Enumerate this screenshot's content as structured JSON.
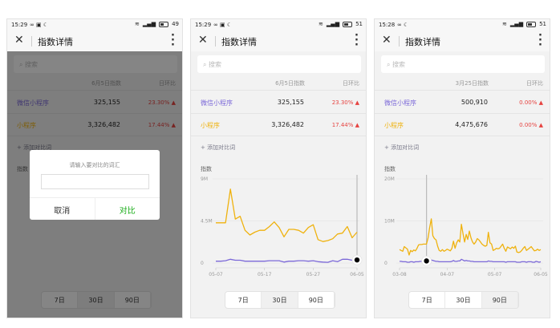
{
  "colors": {
    "series_a": "#7b68d8",
    "series_b": "#efb20e",
    "up": "#e64340",
    "confirm": "#1aad19"
  },
  "panels": [
    {
      "status": {
        "time": "15:29",
        "extra": "∞ ▣ ☾",
        "battery": "49",
        "battery_level": 0.49
      },
      "nav": {
        "close_icon": "close-icon",
        "title": "指数详情",
        "more_icon": "more-vertical-icon"
      },
      "search": {
        "placeholder": "搜索",
        "icon": "search-icon"
      },
      "table": {
        "date_header": "6月5日指数",
        "change_header": "日环比",
        "rows": [
          {
            "name": "微信小程序",
            "value": "325,155",
            "change": "23.30% ▲",
            "series": "a"
          },
          {
            "name": "小程序",
            "value": "3,326,482",
            "change": "17.44% ▲",
            "series": "b"
          }
        ]
      },
      "add_compare": "+ 添加对比词",
      "chart_label": "指数",
      "ranges": [
        {
          "label": "7日",
          "selected": false
        },
        {
          "label": "30日",
          "selected": true
        },
        {
          "label": "90日",
          "selected": false
        }
      ],
      "dialog": {
        "title": "请输入要对比的词汇",
        "input_value": "",
        "cancel": "取消",
        "confirm": "对比"
      },
      "chart_data": null
    },
    {
      "status": {
        "time": "15:29",
        "extra": "∞ ▣ ☾",
        "battery": "51",
        "battery_level": 0.51
      },
      "nav": {
        "close_icon": "close-icon",
        "title": "指数详情",
        "more_icon": "more-vertical-icon"
      },
      "search": {
        "placeholder": "搜索",
        "icon": "search-icon"
      },
      "table": {
        "date_header": "6月5日指数",
        "change_header": "日环比",
        "rows": [
          {
            "name": "微信小程序",
            "value": "325,155",
            "change": "23.30% ▲",
            "series": "a"
          },
          {
            "name": "小程序",
            "value": "3,326,482",
            "change": "17.44% ▲",
            "series": "b"
          }
        ]
      },
      "add_compare": "+ 添加对比词",
      "chart_label": "指数",
      "ranges": [
        {
          "label": "7日",
          "selected": false
        },
        {
          "label": "30日",
          "selected": true
        },
        {
          "label": "90日",
          "selected": false
        }
      ],
      "chart_data": {
        "type": "line",
        "ylim": [
          0,
          9000000
        ],
        "grid": true,
        "yticks": [
          {
            "value": 0,
            "label": "0"
          },
          {
            "value": 4500000,
            "label": "4.5M"
          },
          {
            "value": 9000000,
            "label": "9M"
          }
        ],
        "xcount": 30,
        "xticks": [
          {
            "index": 0,
            "label": "05-07"
          },
          {
            "index": 10,
            "label": "05-17"
          },
          {
            "index": 20,
            "label": "05-27"
          },
          {
            "index": 29,
            "label": "06-05"
          }
        ],
        "marker_index": 29,
        "series": [
          {
            "key": "b",
            "name": "小程序",
            "values": [
              4.3,
              4.3,
              4.3,
              7.9,
              4.7,
              5.0,
              3.5,
              3.0,
              3.3,
              3.5,
              3.5,
              3.9,
              4.4,
              3.8,
              2.8,
              3.6,
              3.6,
              3.5,
              3.2,
              3.8,
              4.1,
              2.5,
              2.3,
              2.4,
              2.6,
              3.1,
              3.2,
              3.9,
              2.7,
              3.3
            ]
          },
          {
            "key": "a",
            "name": "微信小程序",
            "values": [
              0.2,
              0.2,
              0.25,
              0.4,
              0.3,
              0.3,
              0.2,
              0.2,
              0.2,
              0.2,
              0.2,
              0.25,
              0.25,
              0.25,
              0.1,
              0.2,
              0.2,
              0.25,
              0.25,
              0.2,
              0.25,
              0.15,
              0.1,
              0.08,
              0.25,
              0.15,
              0.4,
              0.4,
              0.3,
              0.33
            ]
          }
        ],
        "unit_multiplier": 1000000
      }
    },
    {
      "status": {
        "time": "15:28",
        "extra": "∞ ☾",
        "battery": "51",
        "battery_level": 0.51
      },
      "nav": {
        "close_icon": "close-icon",
        "title": "指数详情",
        "more_icon": "more-vertical-icon"
      },
      "search": {
        "placeholder": "搜索",
        "icon": "search-icon"
      },
      "table": {
        "date_header": "3月25日指数",
        "change_header": "日环比",
        "rows": [
          {
            "name": "微信小程序",
            "value": "500,910",
            "change": "0.00% ▲",
            "series": "a"
          },
          {
            "name": "小程序",
            "value": "4,475,676",
            "change": "0.00% ▲",
            "series": "b"
          }
        ]
      },
      "add_compare": "+ 添加对比词",
      "chart_label": "指数",
      "ranges": [
        {
          "label": "7日",
          "selected": false
        },
        {
          "label": "30日",
          "selected": false
        },
        {
          "label": "90日",
          "selected": true
        }
      ],
      "chart_data": {
        "type": "line",
        "ylim": [
          0,
          20000000
        ],
        "grid": true,
        "yticks": [
          {
            "value": 0,
            "label": "0"
          },
          {
            "value": 10000000,
            "label": "10M"
          },
          {
            "value": 20000000,
            "label": "20M"
          }
        ],
        "xcount": 90,
        "xticks": [
          {
            "index": 0,
            "label": "03-08"
          },
          {
            "index": 30,
            "label": "04-07"
          },
          {
            "index": 60,
            "label": "05-07"
          },
          {
            "index": 89,
            "label": "06-05"
          }
        ],
        "marker_index": 17,
        "series": [
          {
            "key": "b",
            "name": "小程序",
            "values": [
              3.2,
              3.0,
              2.8,
              3.9,
              3.6,
              3.3,
              1.9,
              3.0,
              2.7,
              3.1,
              2.9,
              3.5,
              4.3,
              4.4,
              4.4,
              4.5,
              4.5,
              4.5,
              6.0,
              8.5,
              10.5,
              6.5,
              5.8,
              5.5,
              4.0,
              3.0,
              2.8,
              3.2,
              2.8,
              3.0,
              3.3,
              3.1,
              2.9,
              3.5,
              5.2,
              3.5,
              4.8,
              5.5,
              5.0,
              9.2,
              7.0,
              5.0,
              6.8,
              5.6,
              7.6,
              6.0,
              5.0,
              4.5,
              5.0,
              5.8,
              5.5,
              5.0,
              4.5,
              4.2,
              4.0,
              4.2,
              7.3,
              4.8,
              4.5,
              3.0,
              3.2,
              3.5,
              3.4,
              3.5,
              4.0,
              4.5,
              3.5,
              2.8,
              3.8,
              3.6,
              3.4,
              3.8,
              3.5,
              4.0,
              2.6,
              2.5,
              2.6,
              3.0,
              3.5,
              3.9,
              3.0,
              3.3,
              3.6,
              3.9,
              3.4,
              2.9,
              3.0,
              3.3,
              3.0,
              3.2
            ]
          },
          {
            "key": "a",
            "name": "微信小程序",
            "values": [
              0.4,
              0.4,
              0.3,
              0.3,
              0.3,
              0.2,
              0.2,
              0.3,
              0.3,
              0.2,
              0.3,
              0.3,
              0.3,
              0.4,
              0.4,
              0.4,
              0.5,
              0.5,
              1.0,
              0.8,
              0.7,
              0.6,
              0.5,
              0.4,
              0.4,
              0.3,
              0.3,
              0.3,
              0.3,
              0.3,
              0.3,
              0.3,
              0.3,
              0.4,
              0.6,
              0.4,
              0.4,
              0.5,
              0.5,
              0.9,
              0.7,
              0.5,
              0.6,
              0.5,
              0.5,
              0.4,
              0.4,
              0.3,
              0.3,
              0.3,
              0.3,
              0.3,
              0.3,
              0.3,
              0.3,
              0.3,
              0.5,
              0.4,
              0.4,
              0.3,
              0.3,
              0.3,
              0.3,
              0.3,
              0.3,
              0.3,
              0.3,
              0.2,
              0.3,
              0.3,
              0.3,
              0.3,
              0.3,
              0.3,
              0.2,
              0.2,
              0.2,
              0.3,
              0.3,
              0.3,
              0.2,
              0.3,
              0.3,
              0.3,
              0.2,
              0.2,
              0.4,
              0.3,
              0.2,
              0.3
            ]
          }
        ],
        "unit_multiplier": 1000000
      }
    }
  ]
}
